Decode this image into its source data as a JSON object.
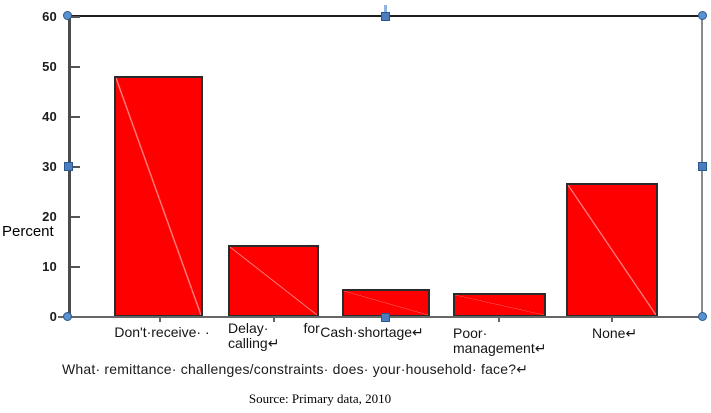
{
  "chart_data": {
    "type": "bar",
    "title": "",
    "xlabel": "What remittance challenges/constraints does your household face?",
    "ylabel": "Percent",
    "categories": [
      "Don't receive",
      "Delay calling for",
      "Cash shortage",
      "Poor management",
      "None"
    ],
    "values": [
      48.2,
      14.3,
      5.6,
      4.8,
      26.8
    ],
    "ylim": [
      0,
      60
    ],
    "yticks": [
      0,
      10,
      20,
      30,
      40,
      50,
      60
    ],
    "bar_color": "#ff0000",
    "bar_border_color": "#2b2b2b",
    "grid": false,
    "legend": "none"
  },
  "axis": {
    "ylabel": "Percent",
    "ytick_labels_top_to_bottom": [
      "60",
      "50",
      "40",
      "30",
      "20",
      "10",
      "0"
    ]
  },
  "category_display": [
    {
      "lines": [
        "Don't·receive· ·"
      ]
    },
    {
      "lines": [
        "Delay·   for",
        "calling↵"
      ]
    },
    {
      "lines": [
        "Cash·shortage↵"
      ]
    },
    {
      "lines": [
        "Poor·",
        "management↵"
      ]
    },
    {
      "lines": [
        "None↵"
      ]
    }
  ],
  "texts": {
    "question": "What· remittance· challenges/constraints· does· your·household· face?↵",
    "source": "Source: Primary data, 2010"
  },
  "selection": {
    "handle_fill": "#4a7ebd",
    "handle_border": "#29578f",
    "handle_shapes": {
      "corners": "circle",
      "edges": "square"
    }
  }
}
